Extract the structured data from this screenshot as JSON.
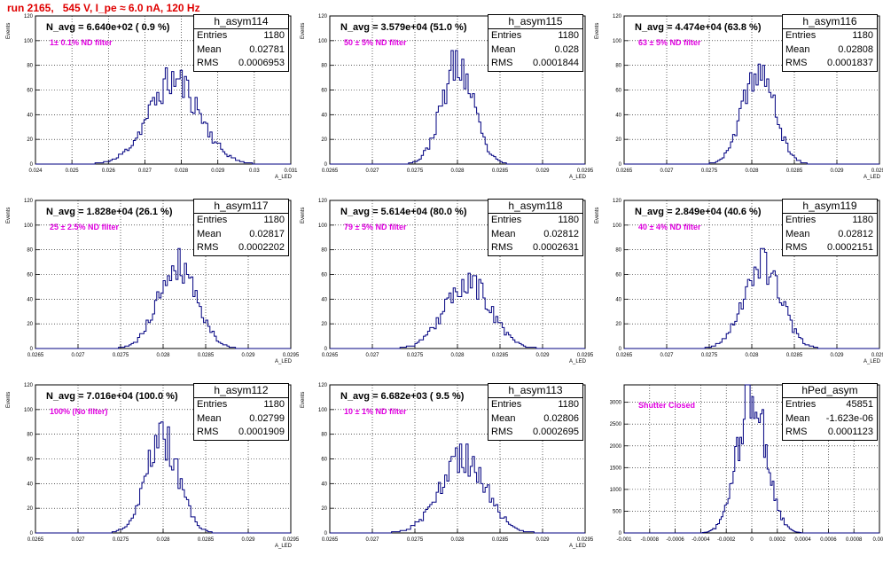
{
  "page": {
    "title": "run 2165,   545 V, I_pe ≈ 6.0 nA, 120 Hz"
  },
  "colors": {
    "histogram": "#000080",
    "title_red": "#e00000",
    "note_magenta": "#e000e0",
    "grid": "#000000"
  },
  "chart_data": [
    {
      "type": "bar",
      "histogram_name": "h_asym114",
      "headline": "N_avg = 6.640e+02 ( 0.9 %)",
      "filter_note": "1± 0.1% ND filter",
      "stats": {
        "entries_label": "Entries",
        "entries": "1180",
        "mean_label": "Mean",
        "mean": "0.02781",
        "rms_label": "RMS",
        "rms": "0.0006953"
      },
      "ylabel": "Events",
      "xlabel": "A_LED",
      "xlim": [
        0.024,
        0.031
      ],
      "ylim": [
        0,
        120
      ],
      "xticks": [
        "0.024",
        "0.025",
        "0.026",
        "0.027",
        "0.028",
        "0.029",
        "0.03",
        "0.031"
      ],
      "yticks": [
        "0",
        "20",
        "40",
        "60",
        "80",
        "100",
        "120"
      ],
      "grid": true,
      "dist": {
        "mean": 0.02781,
        "rms": 0.0006953,
        "peak": 68,
        "bins": 120,
        "seed": 11
      }
    },
    {
      "type": "bar",
      "histogram_name": "h_asym115",
      "headline": "N_avg = 3.579e+04 (51.0 %)",
      "filter_note": "50 ± 5% ND filter",
      "stats": {
        "entries_label": "Entries",
        "entries": "1180",
        "mean_label": "Mean",
        "mean": "0.028",
        "rms_label": "RMS",
        "rms": "0.0001844"
      },
      "ylabel": "Events",
      "xlabel": "A_LED",
      "xlim": [
        0.0265,
        0.0295
      ],
      "ylim": [
        0,
        120
      ],
      "xticks": [
        "0.0265",
        "0.027",
        "0.0275",
        "0.028",
        "0.0285",
        "0.029",
        "0.0295"
      ],
      "yticks": [
        "0",
        "20",
        "40",
        "60",
        "80",
        "100",
        "120"
      ],
      "grid": true,
      "dist": {
        "mean": 0.028,
        "rms": 0.0001844,
        "peak": 80,
        "bins": 120,
        "seed": 23
      }
    },
    {
      "type": "bar",
      "histogram_name": "h_asym116",
      "headline": "N_avg = 4.474e+04 (63.8 %)",
      "filter_note": "63 ± 5% ND filter",
      "stats": {
        "entries_label": "Entries",
        "entries": "1180",
        "mean_label": "Mean",
        "mean": "0.02808",
        "rms_label": "RMS",
        "rms": "0.0001837"
      },
      "ylabel": "Events",
      "xlabel": "A_LED",
      "xlim": [
        0.0265,
        0.0295
      ],
      "ylim": [
        0,
        120
      ],
      "xticks": [
        "0.0265",
        "0.027",
        "0.0275",
        "0.028",
        "0.0285",
        "0.029",
        "0.0295"
      ],
      "yticks": [
        "0",
        "20",
        "40",
        "60",
        "80",
        "100",
        "120"
      ],
      "grid": true,
      "dist": {
        "mean": 0.02808,
        "rms": 0.0001837,
        "peak": 76,
        "bins": 120,
        "seed": 37
      }
    },
    {
      "type": "bar",
      "histogram_name": "h_asym117",
      "headline": "N_avg = 1.828e+04 (26.1 %)",
      "filter_note": "25 ± 2.5% ND filter",
      "stats": {
        "entries_label": "Entries",
        "entries": "1180",
        "mean_label": "Mean",
        "mean": "0.02817",
        "rms_label": "RMS",
        "rms": "0.0002202"
      },
      "ylabel": "Events",
      "xlabel": "A_LED",
      "xlim": [
        0.0265,
        0.0295
      ],
      "ylim": [
        0,
        120
      ],
      "xticks": [
        "0.0265",
        "0.027",
        "0.0275",
        "0.028",
        "0.0285",
        "0.029",
        "0.0295"
      ],
      "yticks": [
        "0",
        "20",
        "40",
        "60",
        "80",
        "100",
        "120"
      ],
      "grid": true,
      "dist": {
        "mean": 0.02817,
        "rms": 0.0002202,
        "peak": 70,
        "bins": 120,
        "seed": 41
      }
    },
    {
      "type": "bar",
      "histogram_name": "h_asym118",
      "headline": "N_avg = 5.614e+04 (80.0 %)",
      "filter_note": "79 ± 5% ND filter",
      "stats": {
        "entries_label": "Entries",
        "entries": "1180",
        "mean_label": "Mean",
        "mean": "0.02812",
        "rms_label": "RMS",
        "rms": "0.0002631"
      },
      "ylabel": "Events",
      "xlabel": "A_LED",
      "xlim": [
        0.0265,
        0.0295
      ],
      "ylim": [
        0,
        120
      ],
      "xticks": [
        "0.0265",
        "0.027",
        "0.0275",
        "0.028",
        "0.0285",
        "0.029",
        "0.0295"
      ],
      "yticks": [
        "0",
        "20",
        "40",
        "60",
        "80",
        "100",
        "120"
      ],
      "grid": true,
      "dist": {
        "mean": 0.02812,
        "rms": 0.0002631,
        "peak": 54,
        "bins": 120,
        "seed": 53
      }
    },
    {
      "type": "bar",
      "histogram_name": "h_asym119",
      "headline": "N_avg = 2.849e+04 (40.6 %)",
      "filter_note": "40 ± 4% ND filter",
      "stats": {
        "entries_label": "Entries",
        "entries": "1180",
        "mean_label": "Mean",
        "mean": "0.02812",
        "rms_label": "RMS",
        "rms": "0.0002151"
      },
      "ylabel": "Events",
      "xlabel": "A_LED",
      "xlim": [
        0.0265,
        0.0295
      ],
      "ylim": [
        0,
        120
      ],
      "xticks": [
        "0.0265",
        "0.027",
        "0.0275",
        "0.028",
        "0.0285",
        "0.029",
        "0.0295"
      ],
      "yticks": [
        "0",
        "20",
        "40",
        "60",
        "80",
        "100",
        "120"
      ],
      "grid": true,
      "dist": {
        "mean": 0.02812,
        "rms": 0.0002151,
        "peak": 70,
        "bins": 120,
        "seed": 67
      }
    },
    {
      "type": "bar",
      "histogram_name": "h_asym112",
      "headline": "N_avg = 7.016e+04 (100.0 %)",
      "filter_note": "100% (No filter)",
      "stats": {
        "entries_label": "Entries",
        "entries": "1180",
        "mean_label": "Mean",
        "mean": "0.02799",
        "rms_label": "RMS",
        "rms": "0.0001909"
      },
      "ylabel": "Events",
      "xlabel": "A_LED",
      "xlim": [
        0.0265,
        0.0295
      ],
      "ylim": [
        0,
        120
      ],
      "xticks": [
        "0.0265",
        "0.027",
        "0.0275",
        "0.028",
        "0.0285",
        "0.029",
        "0.0295"
      ],
      "yticks": [
        "0",
        "20",
        "40",
        "60",
        "80",
        "100",
        "120"
      ],
      "grid": true,
      "dist": {
        "mean": 0.02799,
        "rms": 0.0001909,
        "peak": 76,
        "bins": 120,
        "seed": 79
      }
    },
    {
      "type": "bar",
      "histogram_name": "h_asym113",
      "headline": "N_avg = 6.682e+03 ( 9.5 %)",
      "filter_note": "10 ± 1% ND filter",
      "stats": {
        "entries_label": "Entries",
        "entries": "1180",
        "mean_label": "Mean",
        "mean": "0.02806",
        "rms_label": "RMS",
        "rms": "0.0002695"
      },
      "ylabel": "Events",
      "xlabel": "A_LED",
      "xlim": [
        0.0265,
        0.0295
      ],
      "ylim": [
        0,
        120
      ],
      "xticks": [
        "0.0265",
        "0.027",
        "0.0275",
        "0.028",
        "0.0285",
        "0.029",
        "0.0295"
      ],
      "yticks": [
        "0",
        "20",
        "40",
        "60",
        "80",
        "100",
        "120"
      ],
      "grid": true,
      "dist": {
        "mean": 0.02806,
        "rms": 0.0002695,
        "peak": 60,
        "bins": 120,
        "seed": 83
      }
    },
    {
      "type": "bar",
      "histogram_name": "hPed_asym",
      "headline": "",
      "filter_note": "Shutter Closed",
      "stats": {
        "entries_label": "Entries",
        "entries": "45851",
        "mean_label": "Mean",
        "mean": "-1.623e-06",
        "rms_label": "RMS",
        "rms": "0.0001123"
      },
      "ylabel": "",
      "xlabel": "",
      "xlim": [
        -0.001,
        0.001
      ],
      "ylim": [
        0,
        3400
      ],
      "xticks": [
        "-0.001",
        "-0.0008",
        "-0.0006",
        "-0.0004",
        "-0.0002",
        "0",
        "0.0002",
        "0.0004",
        "0.0006",
        "0.0008",
        "0.001"
      ],
      "yticks": [
        "0",
        "500",
        "1000",
        "1500",
        "2000",
        "2500",
        "3000"
      ],
      "grid": true,
      "dist": {
        "mean": 0.0,
        "rms": 0.0001123,
        "peak": 3150,
        "bins": 150,
        "seed": 97
      }
    }
  ]
}
